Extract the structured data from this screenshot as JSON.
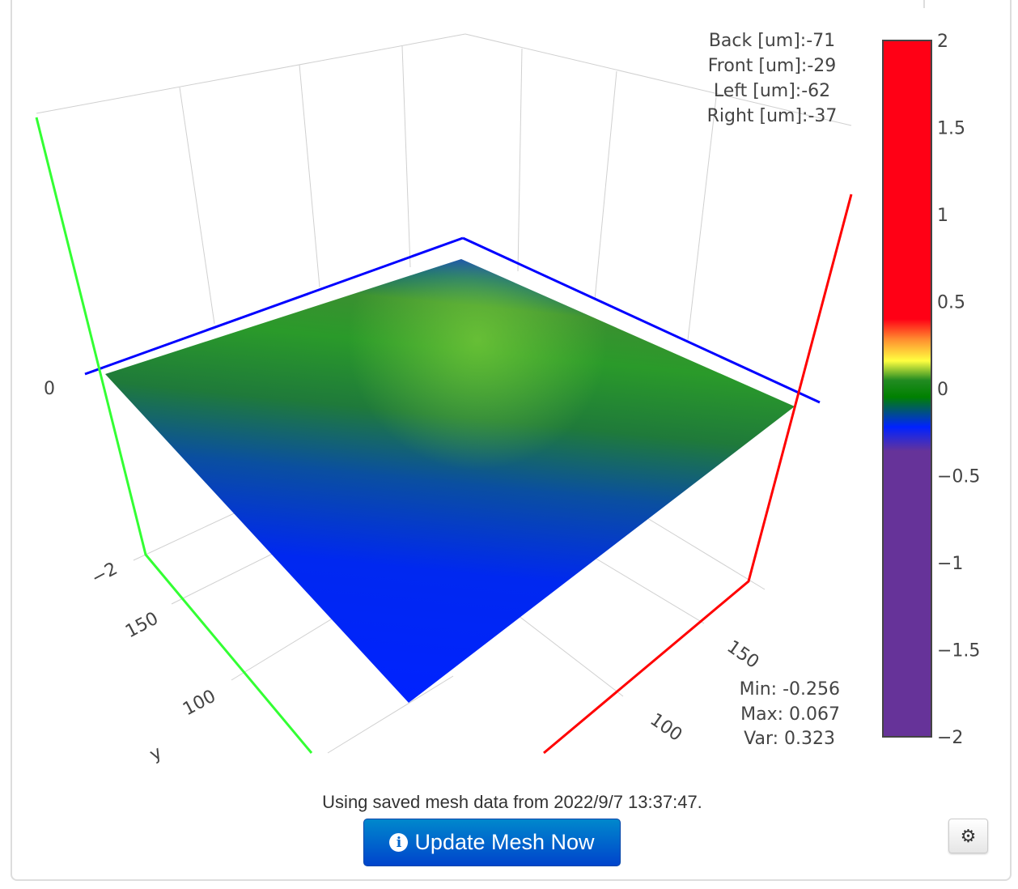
{
  "chart_data": {
    "type": "surface",
    "title": "",
    "axes": {
      "x": {
        "tick_labels": [
          "100",
          "150"
        ]
      },
      "y": {
        "label": "y",
        "tick_labels": [
          "100",
          "150"
        ]
      },
      "z": {
        "tick_labels": [
          "−2",
          "0"
        ]
      }
    },
    "colorbar": {
      "range": [
        -2,
        2
      ],
      "tick_labels": [
        "2",
        "1.5",
        "1",
        "0.5",
        "0",
        "−0.5",
        "−1",
        "−1.5",
        "−2"
      ],
      "colorscale": [
        [
          -2,
          "#663399"
        ],
        [
          -0.35,
          "#663399"
        ],
        [
          -0.25,
          "#0022ff"
        ],
        [
          -0.05,
          "#008000"
        ],
        [
          0.05,
          "#228b22"
        ],
        [
          0.15,
          "#ffff40"
        ],
        [
          0.3,
          "#ff9030"
        ],
        [
          0.4,
          "#ff0015"
        ],
        [
          2,
          "#ff0015"
        ]
      ]
    },
    "z_range_observed": [
      -0.256,
      0.067
    ],
    "annotations": {
      "offsets": [
        "Back [um]:-71",
        "Front [um]:-29",
        "Left [um]:-62",
        "Right [um]:-37"
      ],
      "stats": [
        "Min: -0.256",
        "Max: 0.067",
        "Var: 0.323"
      ]
    },
    "axis_colors": {
      "x": "#ff0000",
      "y": "#33ff33",
      "z_plane": "#0000ff"
    }
  },
  "status": {
    "text": "Using saved mesh data from 2022/9/7 13:37:47."
  },
  "buttons": {
    "update": "Update Mesh Now",
    "update_icon": "info-circle-icon",
    "settings_icon": "gear-icon"
  }
}
